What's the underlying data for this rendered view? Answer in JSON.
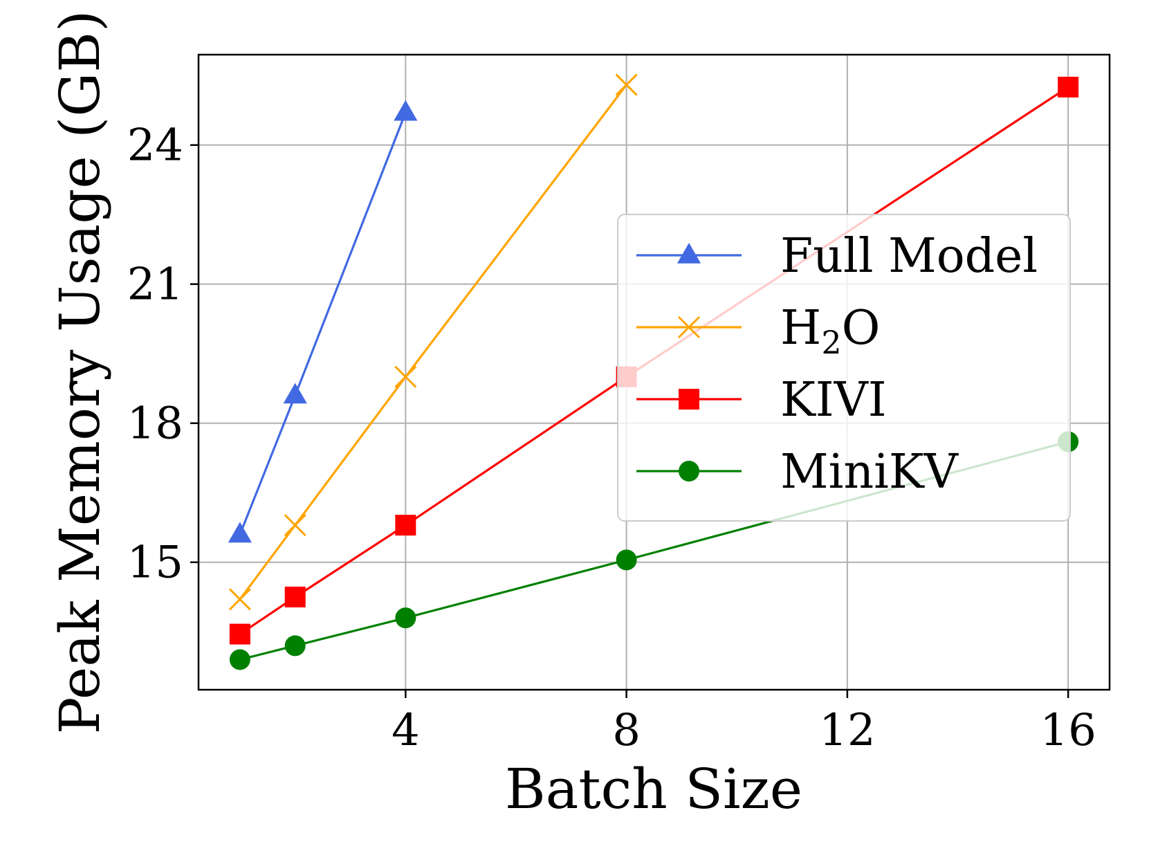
{
  "chart_data": {
    "type": "line",
    "title": "",
    "xlabel": "Batch Size",
    "ylabel": "Peak Memory Usage (GB)",
    "xlim": [
      0.25,
      16.75
    ],
    "ylim": [
      12.25,
      25.95
    ],
    "xticks": [
      4,
      8,
      12,
      16
    ],
    "xtick_labels": [
      "4",
      "8",
      "12",
      "16"
    ],
    "yticks": [
      15,
      18,
      21,
      24
    ],
    "ytick_labels": [
      "15",
      "18",
      "21",
      "24"
    ],
    "grid": true,
    "legend_position": "center-right",
    "series": [
      {
        "name": "Full Model",
        "label_main": "Full Model",
        "label_sub": "",
        "label_tail": "",
        "color": "#4169e1",
        "marker": "triangle",
        "x": [
          1,
          2,
          4
        ],
        "y": [
          15.6,
          18.6,
          24.7
        ]
      },
      {
        "name": "H2O",
        "label_main": "H",
        "label_sub": "2",
        "label_tail": "O",
        "color": "#ffa500",
        "marker": "x",
        "x": [
          1,
          2,
          4,
          8
        ],
        "y": [
          14.2,
          15.8,
          19.0,
          25.3
        ]
      },
      {
        "name": "KIVI",
        "label_main": "KIVI",
        "label_sub": "",
        "label_tail": "",
        "color": "#ff0000",
        "marker": "square",
        "x": [
          1,
          2,
          4,
          8,
          16
        ],
        "y": [
          13.45,
          14.25,
          15.8,
          19.0,
          25.25
        ]
      },
      {
        "name": "MiniKV",
        "label_main": "MiniKV",
        "label_sub": "",
        "label_tail": "",
        "color": "#008000",
        "marker": "circle",
        "x": [
          1,
          2,
          4,
          8,
          16
        ],
        "y": [
          12.9,
          13.2,
          13.8,
          15.05,
          17.6
        ]
      }
    ]
  }
}
